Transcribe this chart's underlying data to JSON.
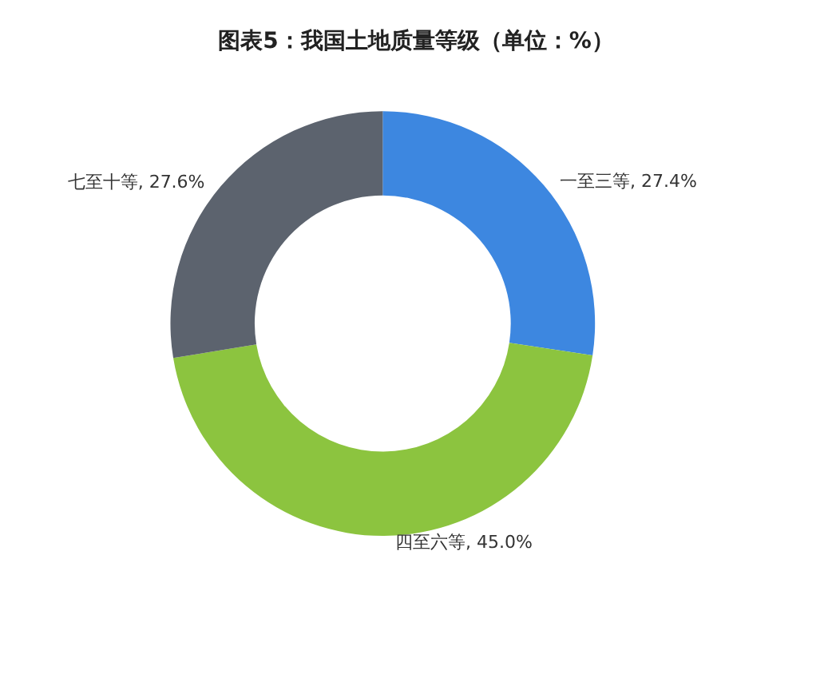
{
  "chart_data": {
    "type": "donut",
    "title": "图表5：我国土地质量等级（单位：%）",
    "categories": [
      "一至三等",
      "四至六等",
      "七至十等"
    ],
    "values": [
      27.4,
      45.0,
      27.6
    ],
    "colors": [
      "#3d87e0",
      "#8cc43f",
      "#5c636e"
    ],
    "value_labels": [
      "27.4%",
      "45.0%",
      "27.6%"
    ],
    "legend": false
  }
}
